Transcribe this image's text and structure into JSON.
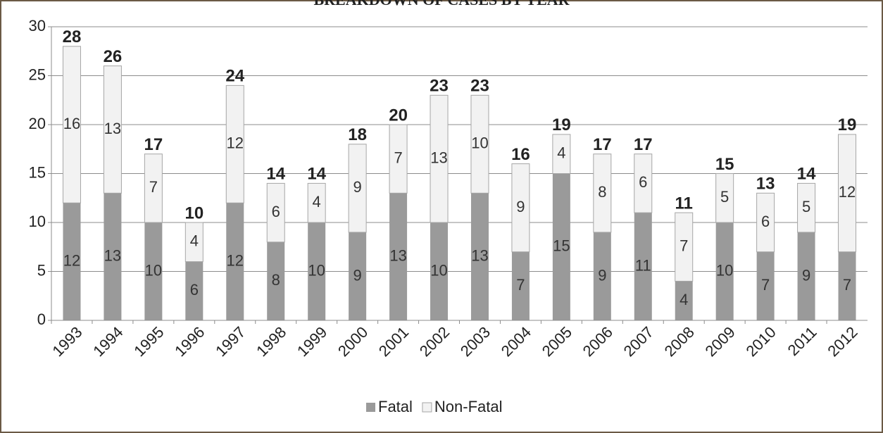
{
  "chart_data": {
    "type": "stacked_bar",
    "title": "BREAKDOWN OF CASES BY YEAR",
    "categories": [
      "1993",
      "1994",
      "1995",
      "1996",
      "1997",
      "1998",
      "1999",
      "2000",
      "2001",
      "2002",
      "2003",
      "2004",
      "2005",
      "2006",
      "2007",
      "2008",
      "2009",
      "2010",
      "2011",
      "2012"
    ],
    "series": [
      {
        "name": "Fatal",
        "color": "#9a9a9a",
        "values": [
          12,
          13,
          10,
          6,
          12,
          8,
          10,
          9,
          13,
          10,
          13,
          7,
          15,
          9,
          11,
          4,
          10,
          7,
          9,
          7
        ]
      },
      {
        "name": "Non-Fatal",
        "color": "#f2f2f2",
        "values": [
          16,
          13,
          7,
          4,
          12,
          6,
          4,
          9,
          7,
          13,
          10,
          9,
          4,
          8,
          6,
          7,
          5,
          6,
          5,
          12
        ]
      }
    ],
    "totals": [
      28,
      26,
      17,
      10,
      24,
      14,
      14,
      18,
      20,
      23,
      23,
      16,
      19,
      17,
      17,
      11,
      15,
      13,
      14,
      19
    ],
    "ylim": [
      0,
      30
    ],
    "yticks": [
      0,
      5,
      10,
      15,
      20,
      25,
      30
    ],
    "grid": true,
    "legend": "bottom"
  }
}
